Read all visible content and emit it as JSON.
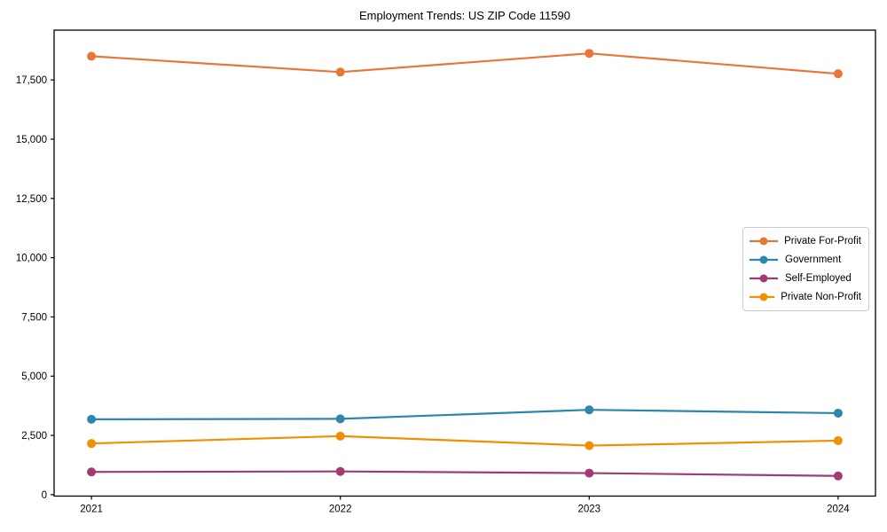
{
  "figure": {
    "title": "Employment Trends: US ZIP Code 11590"
  },
  "chart_data": {
    "type": "line",
    "title": "Employment Trends: US ZIP Code 11590",
    "x": [
      2021,
      2022,
      2023,
      2024
    ],
    "x_tick_labels": [
      "2021",
      "2022",
      "2023",
      "2024"
    ],
    "y_ticks": [
      0,
      2500,
      5000,
      7500,
      10000,
      12500,
      15000,
      17500
    ],
    "y_tick_labels": [
      "0",
      "2,500",
      "5,000",
      "7,500",
      "10,000",
      "12,500",
      "15,000",
      "17,500"
    ],
    "xlim": [
      2020.85,
      2024.15
    ],
    "ylim": [
      -60,
      19600
    ],
    "grid": false,
    "marker": "circle",
    "legend_position": "center right",
    "series": [
      {
        "name": "Private For-Profit",
        "color": "#E8763B",
        "values": [
          18500,
          17830,
          18620,
          17760
        ]
      },
      {
        "name": "Government",
        "color": "#2E86AB",
        "values": [
          3180,
          3200,
          3580,
          3440
        ]
      },
      {
        "name": "Self-Employed",
        "color": "#A23B72",
        "values": [
          960,
          980,
          910,
          790
        ]
      },
      {
        "name": "Private Non-Profit",
        "color": "#F18F01",
        "values": [
          2160,
          2470,
          2070,
          2280
        ]
      }
    ]
  }
}
